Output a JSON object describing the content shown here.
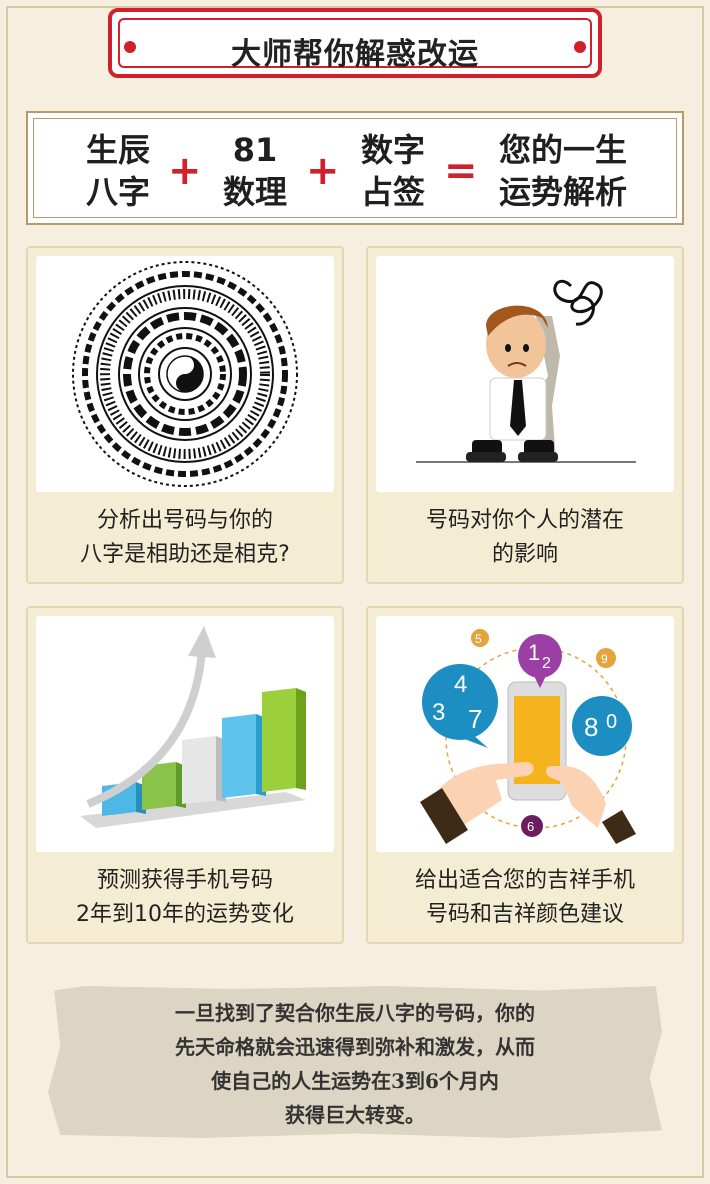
{
  "header": {
    "title": "大师帮你解惑改运"
  },
  "formula": {
    "term1": [
      "生辰",
      "八字"
    ],
    "term2": [
      "81",
      "数理"
    ],
    "term3": [
      "数字",
      "占签"
    ],
    "result": [
      "您的一生",
      "运势解析"
    ],
    "plus": "+",
    "equals": "="
  },
  "cards": [
    {
      "line1": "分析出号码与你的",
      "line2": "八字是相助还是相克?",
      "icon": "bagua-compass-icon"
    },
    {
      "line1": "号码对你个人的潜在",
      "line2": "的影响",
      "icon": "worried-man-icon"
    },
    {
      "line1": "预测获得手机号码",
      "line2": "2年到10年的运势变化",
      "icon": "growth-bar-chart-icon"
    },
    {
      "line1": "给出适合您的吉祥手机",
      "line2": "号码和吉祥颜色建议",
      "icon": "phone-numbers-icon"
    }
  ],
  "phone_numbers": [
    "4",
    "3",
    "7",
    "1",
    "2",
    "8",
    "0",
    "5",
    "9",
    "6"
  ],
  "note": {
    "line1": "一旦找到了契合你生辰八字的号码，你的",
    "line2": "先天命格就会迅速得到弥补和激发，从而",
    "line3": "使自己的人生运势在3到6个月内",
    "line4": "获得巨大转变。"
  },
  "colors": {
    "accent": "#d1202b",
    "background": "#f6efdf",
    "card": "#f5ecd4"
  }
}
